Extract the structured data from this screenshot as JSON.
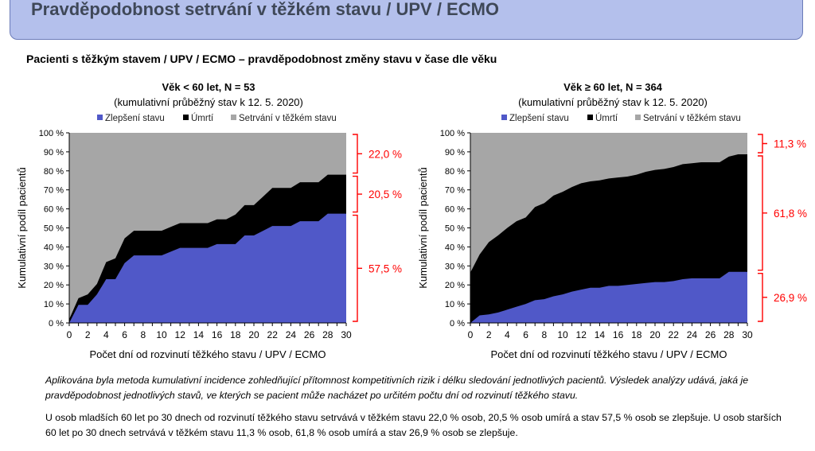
{
  "header": {
    "title": "Pravděpodobnost setrvání v těžkém stavu / UPV / ECMO"
  },
  "subtitle": "Pacienti s těžkým stavem / UPV / ECMO – pravděpodobnost změny stavu v čase dle věku",
  "colors": {
    "improvement": "#5058c8",
    "death": "#000000",
    "remaining": "#a6a6a6",
    "annotation": "#ff0000",
    "banner": "#b4c0ec"
  },
  "chart_data": [
    {
      "type": "area",
      "stacked": true,
      "title": "Věk < 60 let, N = 53",
      "subtitle": "(kumulativní průběžný stav k 12. 5. 2020)",
      "xlabel": "Počet dní od rozvinutí těžkého stavu / UPV / ECMO",
      "ylabel": "Kumulativní podíl pacientů",
      "xlim": [
        0,
        30
      ],
      "ylim": [
        0,
        100
      ],
      "xticks": [
        "0",
        "2",
        "4",
        "6",
        "8",
        "10",
        "12",
        "14",
        "16",
        "18",
        "20",
        "22",
        "24",
        "26",
        "28",
        "30"
      ],
      "yticks": [
        "0 %",
        "10 %",
        "20 %",
        "30 %",
        "40 %",
        "50 %",
        "60 %",
        "70 %",
        "80 %",
        "90 %",
        "100 %"
      ],
      "legend": [
        "Zlepšení stavu",
        "Úmrtí",
        "Setrvání v těžkém stavu"
      ],
      "legend_position": "top",
      "x": [
        0,
        1,
        2,
        3,
        4,
        5,
        6,
        7,
        8,
        9,
        10,
        11,
        12,
        13,
        14,
        15,
        16,
        17,
        18,
        19,
        20,
        21,
        22,
        23,
        24,
        25,
        26,
        27,
        28,
        29,
        30
      ],
      "series": [
        {
          "name": "Zlepšení stavu",
          "values": [
            0,
            9.5,
            9.5,
            15,
            23,
            23,
            31.5,
            35.5,
            35.5,
            35.5,
            35.5,
            37.5,
            39.5,
            39.5,
            39.5,
            39.5,
            41.5,
            41.5,
            41.5,
            46,
            46,
            48.5,
            51,
            51,
            51,
            53.5,
            53.5,
            53.5,
            57.5,
            57.5,
            57.5
          ]
        },
        {
          "name": "Úmrtí",
          "values": [
            2,
            3.5,
            5.5,
            5.5,
            9,
            11,
            13,
            13,
            13,
            13,
            13,
            13,
            13,
            13,
            13,
            13,
            13,
            13,
            15.5,
            16,
            16,
            18,
            20,
            20,
            20,
            20.5,
            20.5,
            20.5,
            20.5,
            20.5,
            20.5
          ]
        },
        {
          "name": "Setrvání v těžkém stavu",
          "remainder_to": 100
        }
      ],
      "annotations": [
        {
          "segment": "Setrvání v těžkém stavu",
          "label": "22,0 %"
        },
        {
          "segment": "Úmrtí",
          "label": "20,5 %"
        },
        {
          "segment": "Zlepšení stavu",
          "label": "57,5 %"
        }
      ]
    },
    {
      "type": "area",
      "stacked": true,
      "title": "Věk ≥ 60 let, N = 364",
      "subtitle": "(kumulativní průběžný stav k 12. 5. 2020)",
      "xlabel": "Počet dní od rozvinutí těžkého stavu / UPV / ECMO",
      "ylabel": "Kumulativní podíl pacientů",
      "xlim": [
        0,
        30
      ],
      "ylim": [
        0,
        100
      ],
      "xticks": [
        "0",
        "2",
        "4",
        "6",
        "8",
        "10",
        "12",
        "14",
        "16",
        "18",
        "20",
        "22",
        "24",
        "26",
        "28",
        "30"
      ],
      "yticks": [
        "0 %",
        "10 %",
        "20 %",
        "30 %",
        "40 %",
        "50 %",
        "60 %",
        "70 %",
        "80 %",
        "90 %",
        "100 %"
      ],
      "legend": [
        "Zlepšení stavu",
        "Úmrtí",
        "Setrvání v těžkém stavu"
      ],
      "legend_position": "top",
      "x": [
        0,
        1,
        2,
        3,
        4,
        5,
        6,
        7,
        8,
        9,
        10,
        11,
        12,
        13,
        14,
        15,
        16,
        17,
        18,
        19,
        20,
        21,
        22,
        23,
        24,
        25,
        26,
        27,
        28,
        29,
        30
      ],
      "series": [
        {
          "name": "Zlepšení stavu",
          "values": [
            0,
            4,
            4.5,
            5.5,
            7,
            8.5,
            10,
            12,
            12.5,
            14,
            15,
            16.5,
            17.5,
            18.5,
            18.5,
            19.5,
            19.5,
            20,
            20.5,
            21,
            21.5,
            21.5,
            22,
            23,
            23.5,
            23.5,
            23.5,
            23.5,
            26.9,
            26.9,
            26.9
          ]
        },
        {
          "name": "Úmrtí",
          "values": [
            26.5,
            32,
            38,
            40.5,
            43,
            45,
            45.5,
            49,
            50.5,
            53,
            54,
            55,
            56,
            56,
            56.5,
            56.5,
            57,
            57,
            57.5,
            58.5,
            59,
            59.5,
            60,
            60.5,
            60.5,
            61,
            61,
            61,
            60.6,
            61.8,
            61.8
          ]
        },
        {
          "name": "Setrvání v těžkém stavu",
          "remainder_to": 100
        }
      ],
      "annotations": [
        {
          "segment": "Setrvání v těžkém stavu",
          "label": "11,3 %"
        },
        {
          "segment": "Úmrtí",
          "label": "61,8 %"
        },
        {
          "segment": "Zlepšení stavu",
          "label": "26,9 %"
        }
      ]
    }
  ],
  "notes": {
    "method": "Aplikována byla metoda kumulativní incidence zohledňující přítomnost kompetitivních rizik i délku sledování jednotlivých pacientů. Výsledek analýzy udává, jaká je pravděpodobnost jednotlivých stavů, ve kterých se pacient může nacházet po určitém počtu dní od rozvinutí těžkého stavu.",
    "summary": "U osob mladších 60 let po 30 dnech od rozvinutí těžkého stavu setrvává v těžkém stavu 22,0 % osob, 20,5 % osob umírá a stav 57,5 % osob se zlepšuje. U osob starších 60 let po 30 dnech setrvává v těžkém stavu 11,3 % osob, 61,8 % osob umírá a stav 26,9 % osob se zlepšuje."
  }
}
